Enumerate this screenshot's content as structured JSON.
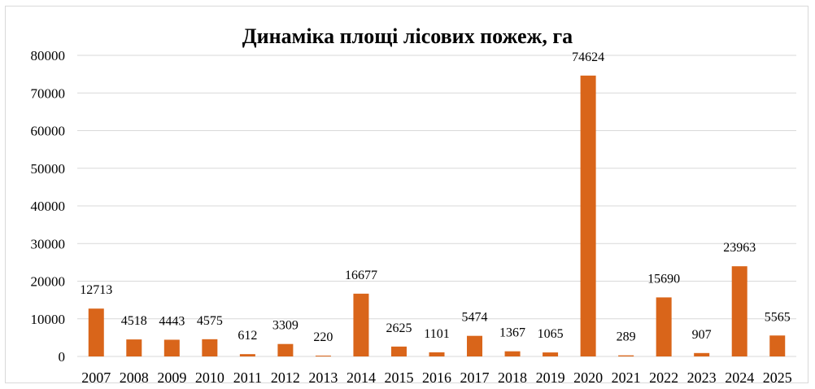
{
  "chart_data": {
    "type": "bar",
    "title": "Динаміка площі лісових пожеж, га",
    "categories": [
      "2007",
      "2008",
      "2009",
      "2010",
      "2011",
      "2012",
      "2013",
      "2014",
      "2015",
      "2016",
      "2017",
      "2018",
      "2019",
      "2020",
      "2021",
      "2022",
      "2023",
      "2024",
      "2025"
    ],
    "values": [
      12713,
      4518,
      4443,
      4575,
      612,
      3309,
      220,
      16677,
      2625,
      1101,
      5474,
      1367,
      1065,
      74624,
      289,
      15690,
      907,
      23963,
      5565
    ],
    "ylim": [
      0,
      80000
    ],
    "yticks": [
      "0",
      "10000",
      "20000",
      "30000",
      "40000",
      "50000",
      "60000",
      "70000",
      "80000"
    ],
    "grid": true,
    "legend": "none",
    "bar_color": "#d9651a",
    "grid_color": "#d9d9d9"
  }
}
